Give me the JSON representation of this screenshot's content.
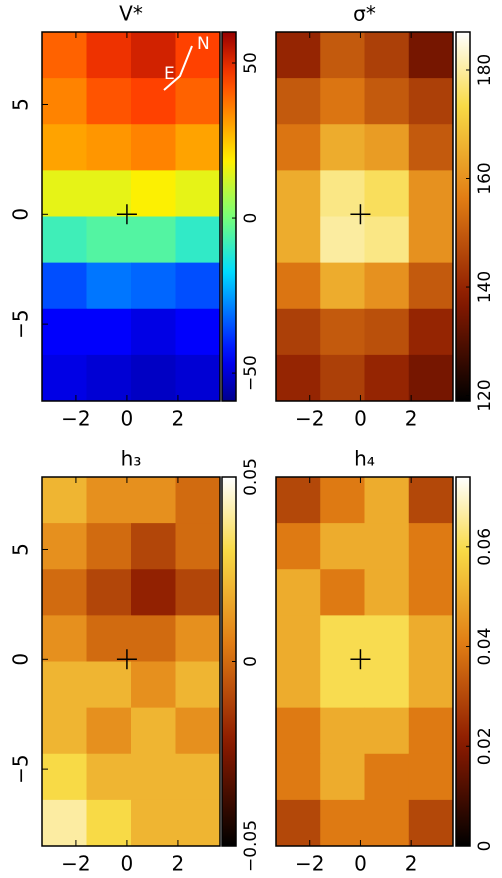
{
  "chart_data": [
    {
      "type": "heatmap",
      "title": "V*",
      "colormap": "jet",
      "xlim": [
        -3.33,
        3.65
      ],
      "ylim": [
        -8.5,
        8.3
      ],
      "xticks": [
        {
          "value": -2,
          "label": "−2"
        },
        0,
        2
      ],
      "yticks": [
        {
          "value": -5,
          "label": "−5"
        },
        0,
        5
      ],
      "clim": [
        -59,
        60
      ],
      "cticks": [
        {
          "value": -50,
          "label": "−50"
        },
        0,
        50
      ],
      "annotations": [
        "N",
        "E"
      ],
      "values": [
        [
          40,
          48,
          52,
          45
        ],
        [
          35,
          42,
          45,
          40
        ],
        [
          30,
          32,
          35,
          30
        ],
        [
          15,
          15,
          18,
          15
        ],
        [
          -8,
          -5,
          -5,
          -10
        ],
        [
          -35,
          -30,
          -32,
          -35
        ],
        [
          -45,
          -45,
          -48,
          -45
        ],
        [
          -48,
          -50,
          -52,
          -50
        ]
      ]
    },
    {
      "type": "heatmap",
      "title": "σ*",
      "colormap": "heat",
      "xlim": [
        -3.33,
        3.65
      ],
      "ylim": [
        -8.5,
        8.3
      ],
      "xticks": [
        {
          "value": -2,
          "label": "−2"
        },
        0,
        2
      ],
      "clim": [
        119,
        187
      ],
      "cticks": [
        120,
        140,
        160,
        180
      ],
      "values": [
        [
          140,
          150,
          145,
          135
        ],
        [
          150,
          155,
          150,
          145
        ],
        [
          155,
          165,
          162,
          150
        ],
        [
          165,
          178,
          175,
          160
        ],
        [
          165,
          180,
          178,
          160
        ],
        [
          155,
          165,
          160,
          150
        ],
        [
          145,
          150,
          148,
          140
        ],
        [
          140,
          145,
          140,
          135
        ]
      ]
    },
    {
      "type": "heatmap",
      "title": "h₃",
      "colormap": "heat",
      "xlim": [
        -3.33,
        3.65
      ],
      "ylim": [
        -8.5,
        8.3
      ],
      "xticks": [
        {
          "value": -2,
          "label": "−2"
        },
        0,
        2
      ],
      "yticks": [
        {
          "value": -5,
          "label": "−5"
        },
        0,
        5
      ],
      "clim": [
        -0.05,
        0.05
      ],
      "cticks": [
        {
          "value": -0.05,
          "label": "−0.05"
        },
        0,
        0.05
      ],
      "values": [
        [
          0.02,
          0.01,
          0.01,
          0.0
        ],
        [
          0.01,
          0.0,
          -0.01,
          0.0
        ],
        [
          0.0,
          -0.01,
          -0.02,
          -0.01
        ],
        [
          0.01,
          0.0,
          0.0,
          0.01
        ],
        [
          0.02,
          0.02,
          0.01,
          0.02
        ],
        [
          0.02,
          0.01,
          0.02,
          0.01
        ],
        [
          0.03,
          0.02,
          0.02,
          0.02
        ],
        [
          0.04,
          0.03,
          0.02,
          0.02
        ]
      ]
    },
    {
      "type": "heatmap",
      "title": "h₄",
      "colormap": "heat",
      "xlim": [
        -3.33,
        3.65
      ],
      "ylim": [
        -8.5,
        8.3
      ],
      "xticks": [
        {
          "value": -2,
          "label": "−2"
        },
        0,
        2
      ],
      "clim": [
        0,
        0.074
      ],
      "cticks": [
        0,
        0.02,
        0.04,
        0.06
      ],
      "values": [
        [
          0.03,
          0.04,
          0.05,
          0.03
        ],
        [
          0.04,
          0.05,
          0.05,
          0.04
        ],
        [
          0.05,
          0.04,
          0.05,
          0.04
        ],
        [
          0.05,
          0.06,
          0.06,
          0.05
        ],
        [
          0.05,
          0.06,
          0.06,
          0.05
        ],
        [
          0.04,
          0.05,
          0.05,
          0.04
        ],
        [
          0.04,
          0.05,
          0.04,
          0.04
        ],
        [
          0.03,
          0.04,
          0.04,
          0.03
        ]
      ]
    }
  ]
}
